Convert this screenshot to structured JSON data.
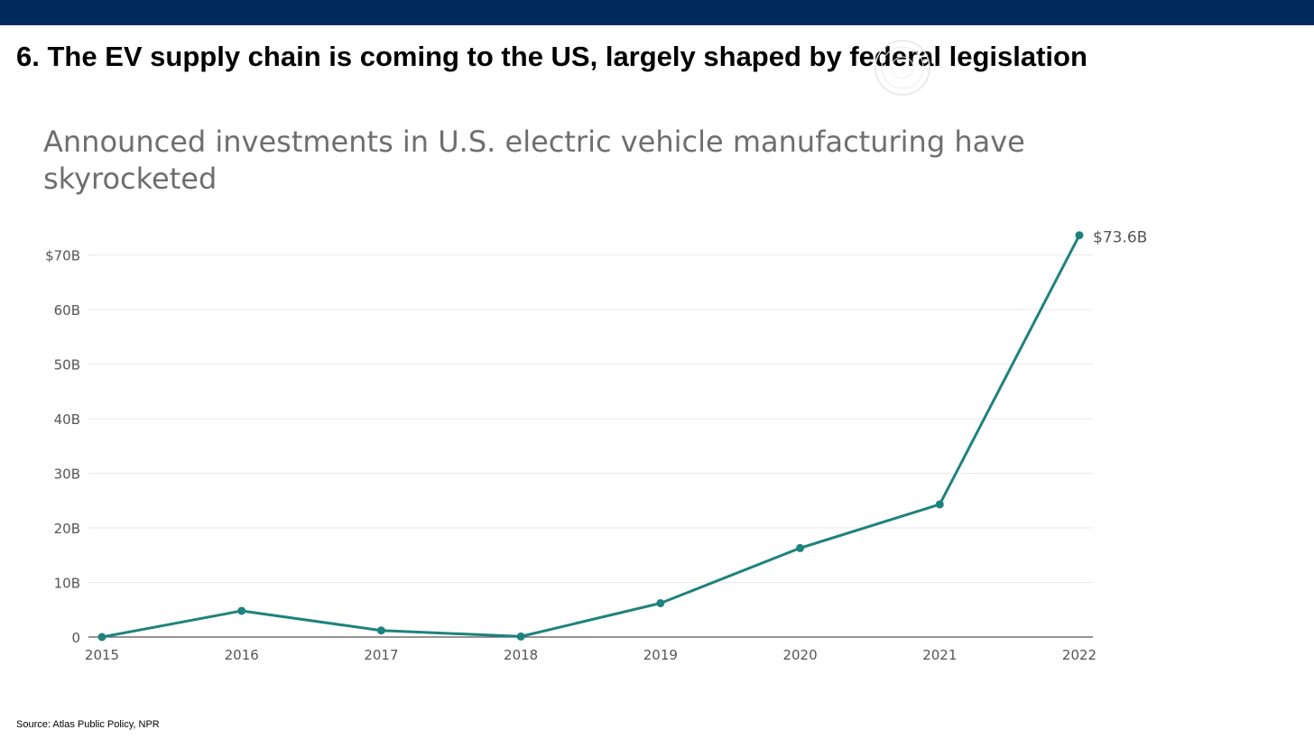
{
  "slide": {
    "title": "6. The EV supply chain is coming to the US, largely shaped by federal legislation",
    "source": "Source: Atlas Public Policy, NPR",
    "band_color": "#002a5c"
  },
  "chart_data": {
    "type": "line",
    "title": "Announced investments in U.S. electric vehicle manufacturing have skyrocketed",
    "xlabel": "",
    "ylabel": "",
    "x": [
      "2015",
      "2016",
      "2017",
      "2018",
      "2019",
      "2020",
      "2021",
      "2022"
    ],
    "series": [
      {
        "values": [
          0.0,
          4.8,
          1.2,
          0.1,
          6.2,
          16.3,
          24.3,
          73.6
        ],
        "color": "#1e827e"
      }
    ],
    "ylim": [
      0,
      70
    ],
    "yticks": [
      0,
      10,
      20,
      30,
      40,
      50,
      60,
      70
    ],
    "ytick_labels": [
      "0",
      "10B",
      "20B",
      "30B",
      "40B",
      "50B",
      "60B",
      "$70B"
    ],
    "end_label": "$73.6B",
    "grid": true,
    "legend": "none"
  }
}
